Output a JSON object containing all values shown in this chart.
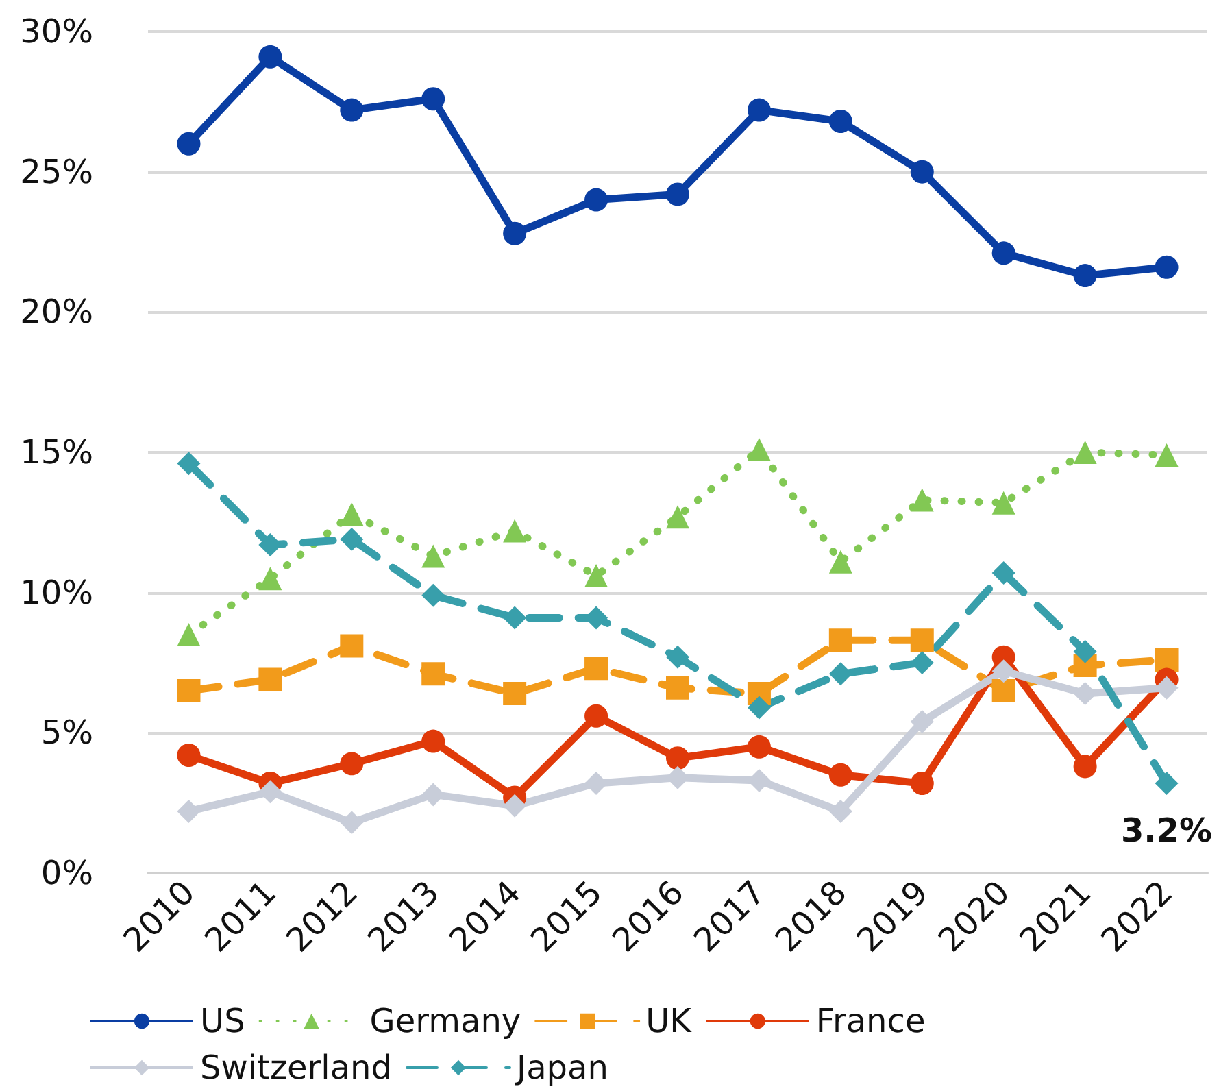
{
  "chart_data": {
    "type": "line",
    "categories": [
      "2010",
      "2011",
      "2012",
      "2013",
      "2014",
      "2015",
      "2016",
      "2017",
      "2018",
      "2019",
      "2020",
      "2021",
      "2022"
    ],
    "series": [
      {
        "name": "US",
        "color": "#0a3ea3",
        "marker": "circle",
        "line_style": "solid",
        "values": [
          26.0,
          29.1,
          27.2,
          27.6,
          22.8,
          24.0,
          24.2,
          27.2,
          26.8,
          25.0,
          22.1,
          21.3,
          21.6
        ]
      },
      {
        "name": "Germany",
        "color": "#82c854",
        "marker": "triangle",
        "line_style": "dotted",
        "values": [
          8.5,
          10.5,
          12.8,
          11.3,
          12.2,
          10.6,
          12.7,
          15.1,
          11.1,
          13.3,
          13.2,
          15.0,
          14.9
        ]
      },
      {
        "name": "UK",
        "color": "#f29b1b",
        "marker": "square",
        "line_style": "dashed",
        "values": [
          6.5,
          6.9,
          8.1,
          7.1,
          6.4,
          7.3,
          6.6,
          6.4,
          8.3,
          8.3,
          6.5,
          7.4,
          7.6
        ]
      },
      {
        "name": "France",
        "color": "#e03a0a",
        "marker": "circle",
        "line_style": "solid",
        "values": [
          4.2,
          3.2,
          3.9,
          4.7,
          2.7,
          5.6,
          4.1,
          4.5,
          3.5,
          3.2,
          7.7,
          3.8,
          6.9
        ]
      },
      {
        "name": "Switzerland",
        "color": "#c8cdd9",
        "marker": "diamond",
        "line_style": "solid",
        "values": [
          2.2,
          2.9,
          1.8,
          2.8,
          2.4,
          3.2,
          3.4,
          3.3,
          2.2,
          5.4,
          7.2,
          6.4,
          6.6
        ]
      },
      {
        "name": "Japan",
        "color": "#389fab",
        "marker": "diamond",
        "line_style": "dashed",
        "values": [
          14.6,
          11.7,
          11.9,
          9.9,
          9.1,
          9.1,
          7.7,
          5.9,
          7.1,
          7.5,
          10.7,
          7.9,
          3.2
        ],
        "value_labels": [
          null,
          null,
          null,
          null,
          null,
          null,
          null,
          null,
          null,
          null,
          null,
          null,
          "3.2%"
        ]
      }
    ],
    "ylim": [
      0,
      30
    ],
    "yticks": [
      {
        "value": 0,
        "label": "0%"
      },
      {
        "value": 5,
        "label": "5%"
      },
      {
        "value": 10,
        "label": "10%"
      },
      {
        "value": 15,
        "label": "15%"
      },
      {
        "value": 20,
        "label": "20%"
      },
      {
        "value": 25,
        "label": "25%"
      },
      {
        "value": 30,
        "label": "30%"
      }
    ],
    "grid": "y",
    "legend": "bottom"
  }
}
